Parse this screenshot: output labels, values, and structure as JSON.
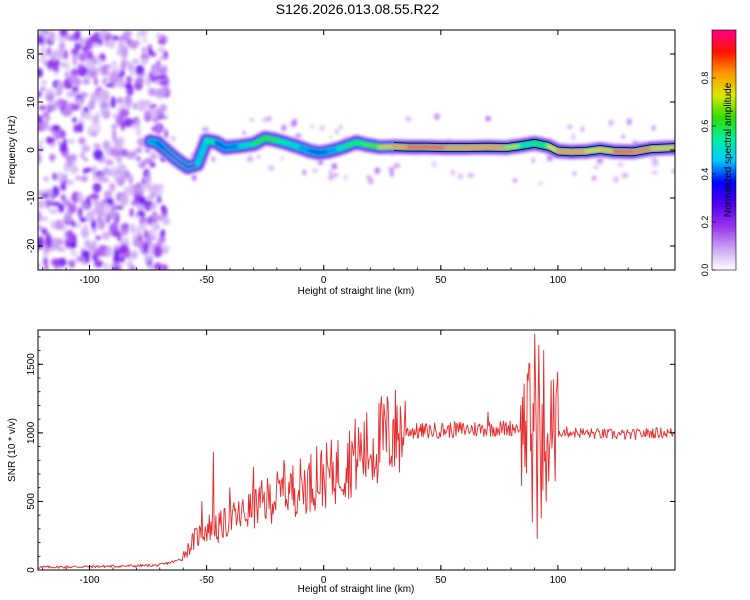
{
  "title": "S126.2026.013.08.55.R22",
  "colors": {
    "axis": "#000000",
    "snr_line": "#e8292b",
    "track_outline": "#000000",
    "colormap": [
      "#ffffff",
      "#c9a3f3",
      "#9933ee",
      "#5500ee",
      "#0000ff",
      "#00c8ff",
      "#00f0a0",
      "#33dd00",
      "#d8e800",
      "#ff9900",
      "#ff1100",
      "#ff0088"
    ]
  },
  "chart_data": [
    {
      "type": "heatmap",
      "name": "spectrogram",
      "title": "",
      "xlabel": "Height of straight line (km)",
      "ylabel": "Frequency (Hz)",
      "xlim": [
        -122,
        150
      ],
      "ylim": [
        -25,
        25
      ],
      "xticks": [
        -100,
        -50,
        0,
        50,
        100
      ],
      "xtick_labels": [
        "-100",
        "-50",
        "0",
        "50",
        "100"
      ],
      "yticks": [
        -20,
        -10,
        0,
        10,
        20
      ],
      "ytick_labels": [
        "-20",
        "-10",
        "0",
        "10",
        "20"
      ],
      "colorbar": {
        "label": "Normalized spectral amplitude",
        "range": [
          0,
          1
        ],
        "ticks": [
          0.0,
          0.2,
          0.4,
          0.6,
          0.8
        ],
        "tick_labels": [
          "0.0",
          "0.2",
          "0.4",
          "0.6",
          "0.8"
        ]
      },
      "noise_region_x": [
        -122,
        -67
      ],
      "track": {
        "x": [
          -74,
          -71,
          -68,
          -64,
          -61,
          -58,
          -54,
          -50,
          -46,
          -42,
          -36,
          -30,
          -25,
          -20,
          -15,
          -10,
          -6,
          -2,
          2,
          6,
          10,
          14,
          18,
          24,
          30,
          36,
          44,
          52,
          60,
          70,
          78,
          84,
          90,
          96,
          100,
          106,
          112,
          118,
          124,
          132,
          140,
          150
        ],
        "y": [
          1.8,
          1.5,
          0.2,
          -1.5,
          -2.6,
          -3.6,
          -3.0,
          2.0,
          1.6,
          0.5,
          0.8,
          1.2,
          2.5,
          2.0,
          1.3,
          0.5,
          -0.2,
          -0.6,
          -0.3,
          0.2,
          0.9,
          1.6,
          1.1,
          0.6,
          0.7,
          0.6,
          0.6,
          0.5,
          0.5,
          0.6,
          0.5,
          0.9,
          1.4,
          0.8,
          -0.2,
          -0.4,
          -0.3,
          0.1,
          -0.3,
          -0.4,
          0.3,
          0.5
        ],
        "amplitude": [
          0.4,
          0.45,
          0.3,
          0.25,
          0.25,
          0.3,
          0.25,
          0.65,
          0.4,
          0.35,
          0.45,
          0.5,
          0.7,
          0.55,
          0.5,
          0.45,
          0.4,
          0.35,
          0.4,
          0.45,
          0.55,
          0.6,
          0.55,
          0.75,
          0.8,
          0.85,
          0.9,
          0.85,
          0.8,
          0.85,
          0.8,
          0.6,
          0.45,
          0.7,
          0.8,
          0.85,
          0.8,
          0.7,
          0.85,
          0.9,
          0.8,
          0.75
        ]
      }
    },
    {
      "type": "line",
      "name": "snr",
      "title": "",
      "xlabel": "Height of straight line (km)",
      "ylabel": "SNR (10 * v/v)",
      "xlim": [
        -122,
        150
      ],
      "ylim": [
        0,
        1750
      ],
      "xticks": [
        -100,
        -50,
        0,
        50,
        100
      ],
      "xtick_labels": [
        "-100",
        "-50",
        "0",
        "50",
        "100"
      ],
      "yticks": [
        0,
        500,
        1000,
        1500
      ],
      "ytick_labels": [
        "0",
        "500",
        "1000",
        "1500"
      ],
      "x": [
        -122,
        -100,
        -80,
        -70,
        -62,
        -58,
        -55,
        -50,
        -47,
        -44,
        -40,
        -35,
        -30,
        -25,
        -20,
        -15,
        -10,
        -5,
        0,
        5,
        10,
        15,
        20,
        25,
        30,
        35,
        40,
        50,
        60,
        70,
        80,
        85,
        88,
        90,
        92,
        95,
        98,
        100,
        110,
        120,
        130,
        140,
        150
      ],
      "y": [
        20,
        25,
        30,
        35,
        70,
        150,
        230,
        300,
        330,
        320,
        360,
        400,
        450,
        500,
        540,
        580,
        610,
        650,
        680,
        720,
        790,
        850,
        880,
        960,
        1000,
        1020,
        1010,
        1020,
        1025,
        1030,
        1035,
        1050,
        1060,
        1000,
        900,
        950,
        1020,
        1010,
        1000,
        990,
        985,
        1000,
        1000
      ],
      "spikes": [
        {
          "x": -47,
          "y": 860
        },
        {
          "x": -52,
          "y": 500
        },
        {
          "x": -45,
          "y": 200
        },
        {
          "x": -40,
          "y": 600
        },
        {
          "x": -30,
          "y": 750
        },
        {
          "x": -17,
          "y": 800
        },
        {
          "x": -3,
          "y": 900
        },
        {
          "x": 12,
          "y": 940
        },
        {
          "x": 30,
          "y": 1100
        },
        {
          "x": 70,
          "y": 1150
        },
        {
          "x": 84,
          "y": 1200
        },
        {
          "x": 88,
          "y": 1500
        },
        {
          "x": 89,
          "y": 350
        },
        {
          "x": 90,
          "y": 1720
        },
        {
          "x": 91,
          "y": 230
        },
        {
          "x": 92,
          "y": 1640
        },
        {
          "x": 93,
          "y": 380
        },
        {
          "x": 94,
          "y": 1600
        },
        {
          "x": 95,
          "y": 500
        },
        {
          "x": 97,
          "y": 1380
        },
        {
          "x": 99,
          "y": 650
        }
      ]
    }
  ]
}
